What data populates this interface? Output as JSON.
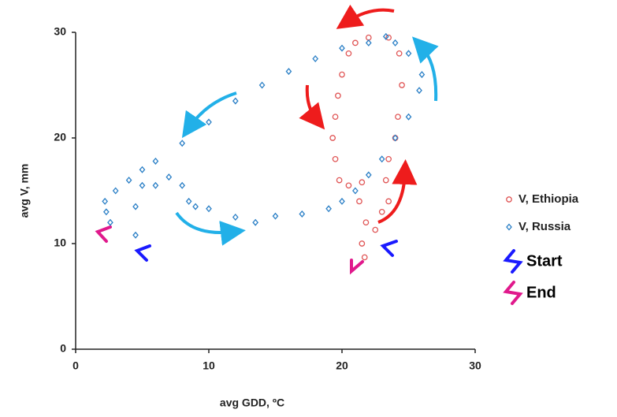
{
  "chart_data": {
    "type": "scatter",
    "x_label": "avg GDD, ºC",
    "y_label": "avg V, mm",
    "xlim": [
      0,
      30
    ],
    "ylim": [
      0,
      30
    ],
    "xticks": [
      0,
      10,
      20,
      30
    ],
    "yticks": [
      0,
      10,
      20,
      30
    ],
    "series": [
      {
        "name": "V, Ethiopia",
        "color": "#e05555",
        "marker": "circle",
        "x": [
          22.5,
          23,
          23.5,
          23.3,
          23.5,
          24,
          24.2,
          24.5,
          24.3,
          23.5,
          22,
          21,
          20.5,
          20,
          19.7,
          19.5,
          19.3,
          19.5,
          19.8,
          20.5,
          21.5,
          21.3,
          21.8,
          21.5,
          21.7
        ],
        "values": [
          11.3,
          13,
          14,
          16,
          18,
          20,
          22,
          25,
          28,
          29.5,
          29.5,
          29,
          28,
          26,
          24,
          22,
          20,
          18,
          16,
          15.5,
          15.8,
          14,
          12,
          10,
          8.7
        ]
      },
      {
        "name": "V, Russia",
        "color": "#2a7fc6",
        "marker": "diamond",
        "x": [
          4.5,
          4.5,
          5,
          6,
          7,
          8,
          8.5,
          9,
          10,
          12,
          13.5,
          15,
          17,
          19,
          20,
          21,
          22,
          23,
          24,
          25,
          25.8,
          26,
          25,
          24,
          23.3,
          22,
          20,
          18,
          16,
          14,
          12,
          10,
          8,
          6,
          5,
          4,
          3,
          2.2,
          2.3,
          2.6
        ],
        "values": [
          10.8,
          13.5,
          15.5,
          15.5,
          16.3,
          15.5,
          14,
          13.5,
          13.3,
          12.5,
          12,
          12.6,
          12.8,
          13.3,
          14,
          15,
          16.5,
          18,
          20,
          22,
          24.5,
          26,
          28,
          29,
          29.6,
          29,
          28.5,
          27.5,
          26.3,
          25,
          23.5,
          21.5,
          19.5,
          17.8,
          17,
          16,
          15,
          14,
          13,
          12
        ]
      }
    ],
    "markers": [
      {
        "label": "Start",
        "color": "#1a1aff"
      },
      {
        "label": "End",
        "color": "#e0198c"
      }
    ]
  }
}
